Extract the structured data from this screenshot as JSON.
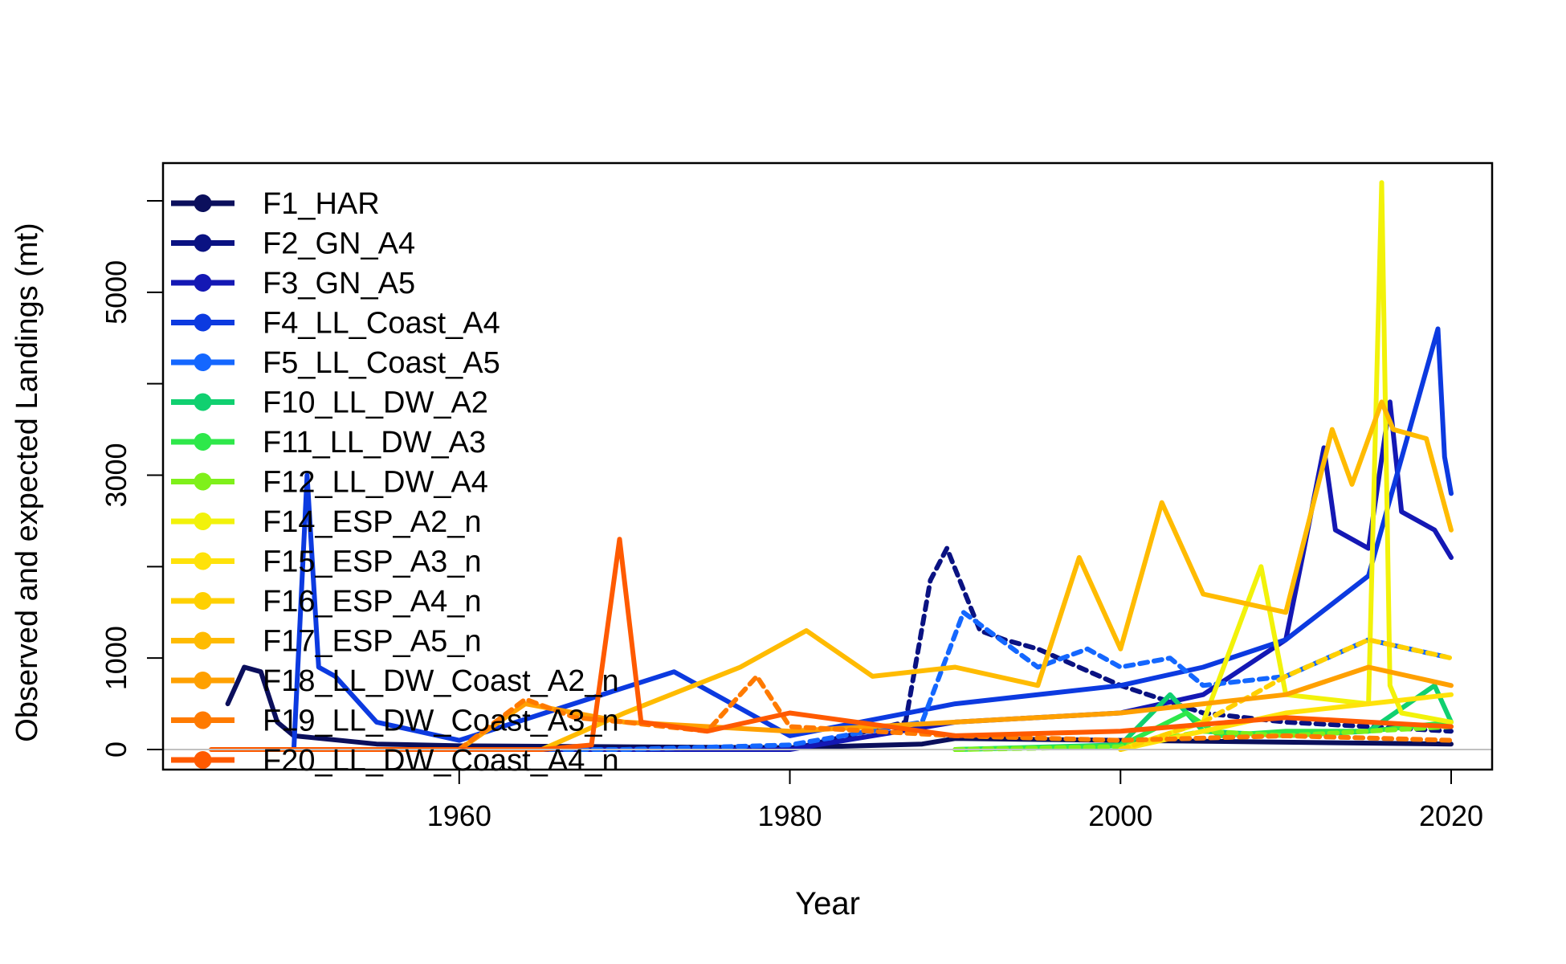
{
  "chart_data": {
    "type": "line",
    "title": "",
    "xlabel": "Year",
    "ylabel": "Observed and expected Landings (mt)",
    "xlim": [
      1945,
      2020
    ],
    "ylim": [
      0,
      6200
    ],
    "x_ticks": [
      1960,
      1980,
      2000,
      2020
    ],
    "y_ticks": [
      0,
      1000,
      3000,
      5000
    ],
    "y_minor_ticks": [
      2000,
      4000,
      6000
    ],
    "x_tick_labels": [
      "1960",
      "1980",
      "2000",
      "2020"
    ],
    "y_tick_labels": [
      "0",
      "1000",
      "3000",
      "5000"
    ],
    "reference_line_y": 0,
    "legend_placement": "top-left",
    "legend": [
      "F1_HAR",
      "F2_GN_A4",
      "F3_GN_A5",
      "F4_LL_Coast_A4",
      "F5_LL_Coast_A5",
      "F10_LL_DW_A2",
      "F11_LL_DW_A3",
      "F12_LL_DW_A4",
      "F14_ESP_A2_n",
      "F15_ESP_A3_n",
      "F16_ESP_A4_n",
      "F17_ESP_A5_n",
      "F18_LL_DW_Coast_A2_n",
      "F19_LL_DW_Coast_A3_n",
      "F20_LL_DW_Coast_A4_n"
    ],
    "series": [
      {
        "name": "F1_HAR",
        "color": "#0b0f5c",
        "x": [
          1946,
          1947,
          1948,
          1949,
          1950,
          1955,
          1960,
          1970,
          1980,
          1988,
          1990,
          2000,
          2010,
          2020
        ],
        "y": [
          500,
          900,
          850,
          300,
          150,
          60,
          40,
          30,
          20,
          60,
          120,
          100,
          80,
          60
        ]
      },
      {
        "name": "F2_GN_A4",
        "color": "#0a1282",
        "x": [
          1946,
          1950,
          1960,
          1970,
          1980,
          1987,
          1988.5,
          1989.5,
          1990.5,
          1991.5,
          1993,
          1995,
          2000,
          2005,
          2010,
          2015,
          2020
        ],
        "y": [
          0,
          0,
          0,
          0,
          0,
          300,
          1850,
          2200,
          1750,
          1300,
          1200,
          1100,
          700,
          400,
          300,
          250,
          200
        ]
      },
      {
        "name": "F3_GN_A5",
        "color": "#1418b4",
        "x": [
          1950,
          1960,
          1970,
          1980,
          1990,
          2000,
          2005,
          2010,
          2011,
          2012.3,
          2013,
          2015,
          2016.3,
          2017,
          2018,
          2019,
          2020
        ],
        "y": [
          0,
          0,
          0,
          0,
          300,
          400,
          600,
          1200,
          2100,
          3300,
          2400,
          2200,
          3800,
          2600,
          2500,
          2400,
          2100
        ]
      },
      {
        "name": "F4_LL_Coast_A4",
        "color": "#0c3ae0",
        "x": [
          1950,
          1950.8,
          1951.5,
          1952.5,
          1955,
          1960,
          1973,
          1980,
          1990,
          2000,
          2005,
          2010,
          2015,
          2019.2,
          2019.6,
          2020
        ],
        "y": [
          0,
          3000,
          900,
          800,
          300,
          100,
          850,
          150,
          500,
          700,
          900,
          1200,
          1900,
          4600,
          3200,
          2800
        ]
      },
      {
        "name": "F5_LL_Coast_A5",
        "color": "#1467ff",
        "x": [
          1955,
          1960,
          1970,
          1980,
          1988,
          1990.5,
          1992,
          1995,
          1998,
          2000,
          2003,
          2005,
          2010,
          2015,
          2020
        ],
        "y": [
          0,
          0,
          0,
          50,
          300,
          1500,
          1300,
          900,
          1100,
          900,
          1000,
          700,
          800,
          1200,
          1000
        ]
      },
      {
        "name": "F10_LL_DW_A2",
        "color": "#10d070",
        "x": [
          1990,
          2000,
          2003,
          2005,
          2010,
          2015,
          2019,
          2020
        ],
        "y": [
          0,
          50,
          600,
          200,
          150,
          200,
          700,
          300
        ]
      },
      {
        "name": "F11_LL_DW_A3",
        "color": "#2ee84a",
        "x": [
          1990,
          2000,
          2004,
          2006,
          2010,
          2015,
          2020
        ],
        "y": [
          0,
          40,
          400,
          150,
          200,
          200,
          300
        ]
      },
      {
        "name": "F12_LL_DW_A4",
        "color": "#7ff01a",
        "x": [
          1990,
          2000,
          2005,
          2010,
          2015,
          2020
        ],
        "y": [
          0,
          30,
          200,
          150,
          200,
          250
        ]
      },
      {
        "name": "F14_ESP_A2_n",
        "color": "#f2f20a",
        "x": [
          2000,
          2005,
          2008.5,
          2010,
          2015,
          2015.8,
          2016.3,
          2017,
          2020
        ],
        "y": [
          0,
          300,
          2000,
          600,
          500,
          6200,
          700,
          400,
          300
        ]
      },
      {
        "name": "F15_ESP_A3_n",
        "color": "#ffe20a",
        "x": [
          2000,
          2005,
          2010,
          2015,
          2020
        ],
        "y": [
          0,
          200,
          400,
          500,
          600
        ]
      },
      {
        "name": "F16_ESP_A4_n",
        "color": "#ffd000",
        "x": [
          2000,
          2005,
          2010,
          2015,
          2020
        ],
        "y": [
          0,
          300,
          800,
          1200,
          1000
        ]
      },
      {
        "name": "F17_ESP_A5_n",
        "color": "#ffbb00",
        "x": [
          1965,
          1970,
          1977,
          1981,
          1985,
          1990,
          1995,
          1997.5,
          2000,
          2002.5,
          2005,
          2010,
          2012.8,
          2014,
          2015.8,
          2016.5,
          2018.5,
          2020
        ],
        "y": [
          0,
          400,
          900,
          1300,
          800,
          900,
          700,
          2100,
          1100,
          2700,
          1700,
          1500,
          3500,
          2900,
          3800,
          3500,
          3400,
          2400
        ]
      },
      {
        "name": "F18_LL_DW_Coast_A2_n",
        "color": "#ffa000",
        "x": [
          1960,
          1964,
          1970,
          1980,
          1990,
          2000,
          2005,
          2010,
          2015,
          2020
        ],
        "y": [
          0,
          500,
          300,
          200,
          300,
          400,
          500,
          600,
          900,
          700
        ]
      },
      {
        "name": "F19_LL_DW_Coast_A3_n",
        "color": "#ff7a00",
        "x": [
          1960,
          1964,
          1967,
          1970,
          1975,
          1978,
          1980,
          1990,
          2000,
          2010,
          2020
        ],
        "y": [
          0,
          550,
          350,
          300,
          200,
          800,
          250,
          150,
          100,
          150,
          100
        ]
      },
      {
        "name": "F20_LL_DW_Coast_A4_n",
        "color": "#ff5a00",
        "x": [
          1945,
          1960,
          1965,
          1968,
          1969.7,
          1971,
          1975,
          1980,
          1990,
          2000,
          2010,
          2020
        ],
        "y": [
          0,
          0,
          0,
          50,
          2300,
          300,
          200,
          400,
          150,
          200,
          350,
          250
        ]
      }
    ]
  }
}
